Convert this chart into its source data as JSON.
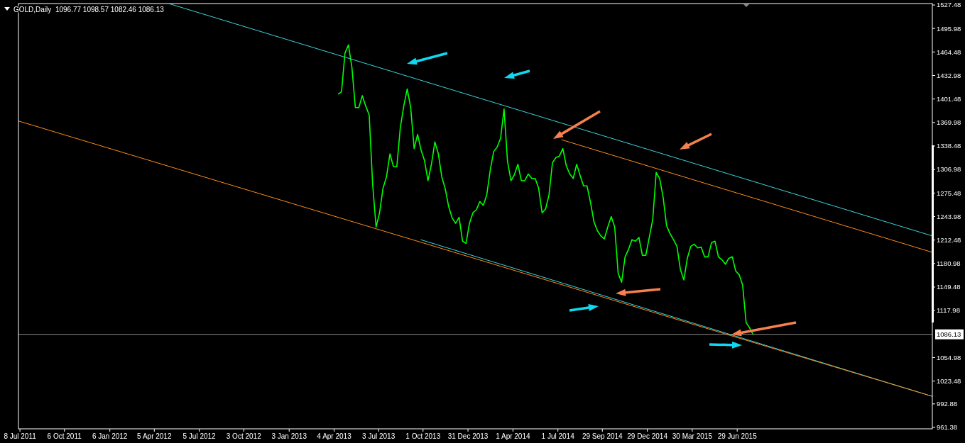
{
  "chart_data": {
    "type": "line",
    "title": "GOLD,Daily  1096.77 1098.57 1082.46 1086.13",
    "xlim": [
      "2011-07-05",
      "2016-07-28"
    ],
    "xticks": [
      {
        "value": "2011-07-08",
        "label": "8 Jul 2011"
      },
      {
        "value": "2011-10-06",
        "label": "6 Oct 2011"
      },
      {
        "value": "2012-01-06",
        "label": "6 Jan 2012"
      },
      {
        "value": "2012-04-05",
        "label": "5 Apr 2012"
      },
      {
        "value": "2012-07-05",
        "label": "5 Jul 2012"
      },
      {
        "value": "2012-10-03",
        "label": "3 Oct 2012"
      },
      {
        "value": "2013-01-03",
        "label": "3 Jan 2013"
      },
      {
        "value": "2013-04-04",
        "label": "4 Apr 2013"
      },
      {
        "value": "2013-07-03",
        "label": "3 Jul 2013"
      },
      {
        "value": "2013-10-01",
        "label": "1 Oct 2013"
      },
      {
        "value": "2013-12-31",
        "label": "31 Dec 2013"
      },
      {
        "value": "2014-04-01",
        "label": "1 Apr 2014"
      },
      {
        "value": "2014-07-01",
        "label": "1 Jul 2014"
      },
      {
        "value": "2014-09-29",
        "label": "29 Sep 2014"
      },
      {
        "value": "2014-12-29",
        "label": "29 Dec 2014"
      },
      {
        "value": "2015-03-30",
        "label": "30 Mar 2015"
      },
      {
        "value": "2015-06-29",
        "label": "29 Jun 2015"
      }
    ],
    "ylim": [
      959.5,
      1529.4
    ],
    "yticks": [
      961.38,
      992.88,
      1023.48,
      1054.98,
      1117.98,
      1149.48,
      1180.98,
      1212.48,
      1243.98,
      1275.48,
      1306.98,
      1338.48,
      1369.98,
      1401.48,
      1432.98,
      1464.48,
      1495.98,
      1527.48
    ],
    "ref_lines": [
      {
        "axis": "y",
        "value": 1086.13,
        "label": "1086.13",
        "color": "#8c8c8c"
      }
    ],
    "series": [
      {
        "color": "#00ff00",
        "x": [
          "2013-04-12",
          "2013-04-19",
          "2013-04-26",
          "2013-05-03",
          "2013-05-10",
          "2013-05-17",
          "2013-05-24",
          "2013-05-31",
          "2013-06-07",
          "2013-06-14",
          "2013-06-21",
          "2013-06-28",
          "2013-07-05",
          "2013-07-12",
          "2013-07-19",
          "2013-07-26",
          "2013-08-02",
          "2013-08-09",
          "2013-08-16",
          "2013-08-23",
          "2013-08-30",
          "2013-09-06",
          "2013-09-13",
          "2013-09-20",
          "2013-09-27",
          "2013-10-04",
          "2013-10-11",
          "2013-10-18",
          "2013-10-25",
          "2013-11-01",
          "2013-11-08",
          "2013-11-15",
          "2013-11-22",
          "2013-11-29",
          "2013-12-06",
          "2013-12-13",
          "2013-12-20",
          "2013-12-27",
          "2014-01-03",
          "2014-01-10",
          "2014-01-17",
          "2014-01-24",
          "2014-01-31",
          "2014-02-07",
          "2014-02-14",
          "2014-02-21",
          "2014-02-28",
          "2014-03-07",
          "2014-03-14",
          "2014-03-21",
          "2014-03-28",
          "2014-04-04",
          "2014-04-11",
          "2014-04-18",
          "2014-04-25",
          "2014-05-02",
          "2014-05-09",
          "2014-05-16",
          "2014-05-23",
          "2014-05-30",
          "2014-06-06",
          "2014-06-13",
          "2014-06-20",
          "2014-06-27",
          "2014-07-04",
          "2014-07-11",
          "2014-07-18",
          "2014-07-25",
          "2014-08-01",
          "2014-08-08",
          "2014-08-15",
          "2014-08-22",
          "2014-08-29",
          "2014-09-05",
          "2014-09-12",
          "2014-09-19",
          "2014-09-26",
          "2014-10-03",
          "2014-10-10",
          "2014-10-17",
          "2014-10-24",
          "2014-10-31",
          "2014-11-07",
          "2014-11-14",
          "2014-11-21",
          "2014-11-28",
          "2014-12-05",
          "2014-12-12",
          "2014-12-19",
          "2014-12-26",
          "2015-01-02",
          "2015-01-09",
          "2015-01-16",
          "2015-01-23",
          "2015-01-30",
          "2015-02-06",
          "2015-02-13",
          "2015-02-20",
          "2015-02-27",
          "2015-03-06",
          "2015-03-13",
          "2015-03-20",
          "2015-03-27",
          "2015-04-03",
          "2015-04-10",
          "2015-04-17",
          "2015-04-24",
          "2015-05-01",
          "2015-05-08",
          "2015-05-15",
          "2015-05-22",
          "2015-05-29",
          "2015-06-05",
          "2015-06-12",
          "2015-06-19",
          "2015-06-26",
          "2015-07-03",
          "2015-07-10",
          "2015-07-17",
          "2015-07-24",
          "2015-07-31"
        ],
        "values": [
          1408,
          1411,
          1463,
          1474,
          1444,
          1390,
          1390,
          1406,
          1392,
          1380,
          1287,
          1230,
          1249,
          1282,
          1297,
          1328,
          1311,
          1311,
          1363,
          1392,
          1415,
          1390,
          1335,
          1354,
          1333,
          1319,
          1292,
          1314,
          1344,
          1328,
          1297,
          1281,
          1257,
          1242,
          1235,
          1243,
          1211,
          1208,
          1235,
          1249,
          1253,
          1264,
          1259,
          1273,
          1306,
          1331,
          1337,
          1349,
          1388,
          1318,
          1292,
          1300,
          1314,
          1292,
          1292,
          1301,
          1295,
          1295,
          1282,
          1249,
          1254,
          1273,
          1316,
          1323,
          1325,
          1335,
          1312,
          1301,
          1295,
          1314,
          1299,
          1285,
          1285,
          1263,
          1237,
          1225,
          1218,
          1214,
          1230,
          1244,
          1230,
          1168,
          1156,
          1190,
          1200,
          1213,
          1211,
          1216,
          1192,
          1192,
          1216,
          1240,
          1303,
          1295,
          1270,
          1232,
          1221,
          1213,
          1204,
          1173,
          1159,
          1188,
          1204,
          1207,
          1202,
          1203,
          1190,
          1190,
          1209,
          1211,
          1190,
          1186,
          1180,
          1188,
          1190,
          1171,
          1166,
          1152,
          1102,
          1095,
          1086
        ]
      },
      {
        "color": "#3cd6dc",
        "x": [
          "2012-05-06",
          "2016-07-28"
        ],
        "values": [
          1529,
          1218
        ]
      },
      {
        "color": "#ff8c1a",
        "x": [
          "2014-07-08",
          "2016-07-28"
        ],
        "values": [
          1347,
          1196
        ]
      },
      {
        "color": "#3cd6dc",
        "x": [
          "2013-09-26",
          "2016-07-28"
        ],
        "values": [
          1213,
          1003
        ]
      },
      {
        "color": "#ff8c1a",
        "x": [
          "2011-07-05",
          "2016-07-28"
        ],
        "values": [
          1372,
          1003
        ]
      }
    ]
  }
}
